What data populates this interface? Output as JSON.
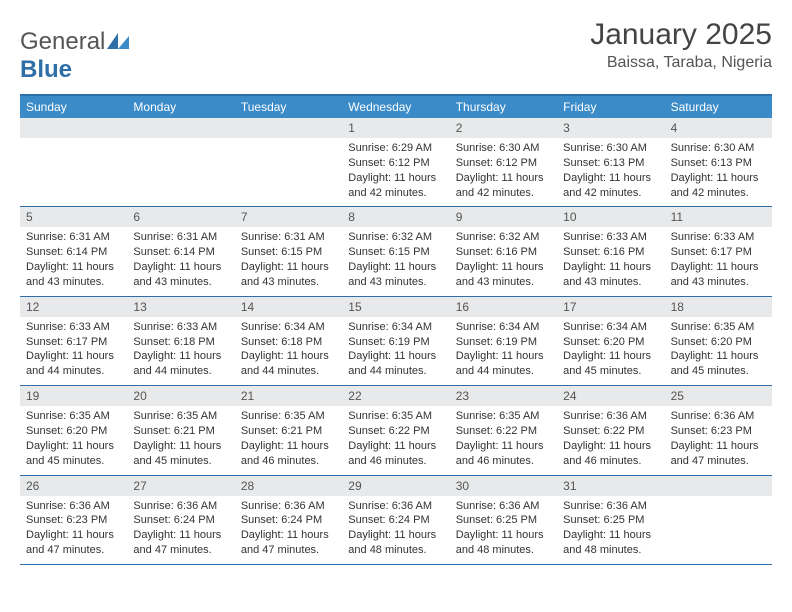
{
  "logo": {
    "general": "General",
    "blue": "Blue"
  },
  "title": "January 2025",
  "location": "Baissa, Taraba, Nigeria",
  "colors": {
    "header_bar": "#3b8bc9",
    "accent_line": "#2f6fa8",
    "day_strip": "#e8e9ea",
    "text": "#333333",
    "background": "#ffffff"
  },
  "weekdays": [
    "Sunday",
    "Monday",
    "Tuesday",
    "Wednesday",
    "Thursday",
    "Friday",
    "Saturday"
  ],
  "weeks": [
    [
      {
        "day": "",
        "sunrise": "",
        "sunset": "",
        "daylight": ""
      },
      {
        "day": "",
        "sunrise": "",
        "sunset": "",
        "daylight": ""
      },
      {
        "day": "",
        "sunrise": "",
        "sunset": "",
        "daylight": ""
      },
      {
        "day": "1",
        "sunrise": "Sunrise: 6:29 AM",
        "sunset": "Sunset: 6:12 PM",
        "daylight": "Daylight: 11 hours and 42 minutes."
      },
      {
        "day": "2",
        "sunrise": "Sunrise: 6:30 AM",
        "sunset": "Sunset: 6:12 PM",
        "daylight": "Daylight: 11 hours and 42 minutes."
      },
      {
        "day": "3",
        "sunrise": "Sunrise: 6:30 AM",
        "sunset": "Sunset: 6:13 PM",
        "daylight": "Daylight: 11 hours and 42 minutes."
      },
      {
        "day": "4",
        "sunrise": "Sunrise: 6:30 AM",
        "sunset": "Sunset: 6:13 PM",
        "daylight": "Daylight: 11 hours and 42 minutes."
      }
    ],
    [
      {
        "day": "5",
        "sunrise": "Sunrise: 6:31 AM",
        "sunset": "Sunset: 6:14 PM",
        "daylight": "Daylight: 11 hours and 43 minutes."
      },
      {
        "day": "6",
        "sunrise": "Sunrise: 6:31 AM",
        "sunset": "Sunset: 6:14 PM",
        "daylight": "Daylight: 11 hours and 43 minutes."
      },
      {
        "day": "7",
        "sunrise": "Sunrise: 6:31 AM",
        "sunset": "Sunset: 6:15 PM",
        "daylight": "Daylight: 11 hours and 43 minutes."
      },
      {
        "day": "8",
        "sunrise": "Sunrise: 6:32 AM",
        "sunset": "Sunset: 6:15 PM",
        "daylight": "Daylight: 11 hours and 43 minutes."
      },
      {
        "day": "9",
        "sunrise": "Sunrise: 6:32 AM",
        "sunset": "Sunset: 6:16 PM",
        "daylight": "Daylight: 11 hours and 43 minutes."
      },
      {
        "day": "10",
        "sunrise": "Sunrise: 6:33 AM",
        "sunset": "Sunset: 6:16 PM",
        "daylight": "Daylight: 11 hours and 43 minutes."
      },
      {
        "day": "11",
        "sunrise": "Sunrise: 6:33 AM",
        "sunset": "Sunset: 6:17 PM",
        "daylight": "Daylight: 11 hours and 43 minutes."
      }
    ],
    [
      {
        "day": "12",
        "sunrise": "Sunrise: 6:33 AM",
        "sunset": "Sunset: 6:17 PM",
        "daylight": "Daylight: 11 hours and 44 minutes."
      },
      {
        "day": "13",
        "sunrise": "Sunrise: 6:33 AM",
        "sunset": "Sunset: 6:18 PM",
        "daylight": "Daylight: 11 hours and 44 minutes."
      },
      {
        "day": "14",
        "sunrise": "Sunrise: 6:34 AM",
        "sunset": "Sunset: 6:18 PM",
        "daylight": "Daylight: 11 hours and 44 minutes."
      },
      {
        "day": "15",
        "sunrise": "Sunrise: 6:34 AM",
        "sunset": "Sunset: 6:19 PM",
        "daylight": "Daylight: 11 hours and 44 minutes."
      },
      {
        "day": "16",
        "sunrise": "Sunrise: 6:34 AM",
        "sunset": "Sunset: 6:19 PM",
        "daylight": "Daylight: 11 hours and 44 minutes."
      },
      {
        "day": "17",
        "sunrise": "Sunrise: 6:34 AM",
        "sunset": "Sunset: 6:20 PM",
        "daylight": "Daylight: 11 hours and 45 minutes."
      },
      {
        "day": "18",
        "sunrise": "Sunrise: 6:35 AM",
        "sunset": "Sunset: 6:20 PM",
        "daylight": "Daylight: 11 hours and 45 minutes."
      }
    ],
    [
      {
        "day": "19",
        "sunrise": "Sunrise: 6:35 AM",
        "sunset": "Sunset: 6:20 PM",
        "daylight": "Daylight: 11 hours and 45 minutes."
      },
      {
        "day": "20",
        "sunrise": "Sunrise: 6:35 AM",
        "sunset": "Sunset: 6:21 PM",
        "daylight": "Daylight: 11 hours and 45 minutes."
      },
      {
        "day": "21",
        "sunrise": "Sunrise: 6:35 AM",
        "sunset": "Sunset: 6:21 PM",
        "daylight": "Daylight: 11 hours and 46 minutes."
      },
      {
        "day": "22",
        "sunrise": "Sunrise: 6:35 AM",
        "sunset": "Sunset: 6:22 PM",
        "daylight": "Daylight: 11 hours and 46 minutes."
      },
      {
        "day": "23",
        "sunrise": "Sunrise: 6:35 AM",
        "sunset": "Sunset: 6:22 PM",
        "daylight": "Daylight: 11 hours and 46 minutes."
      },
      {
        "day": "24",
        "sunrise": "Sunrise: 6:36 AM",
        "sunset": "Sunset: 6:22 PM",
        "daylight": "Daylight: 11 hours and 46 minutes."
      },
      {
        "day": "25",
        "sunrise": "Sunrise: 6:36 AM",
        "sunset": "Sunset: 6:23 PM",
        "daylight": "Daylight: 11 hours and 47 minutes."
      }
    ],
    [
      {
        "day": "26",
        "sunrise": "Sunrise: 6:36 AM",
        "sunset": "Sunset: 6:23 PM",
        "daylight": "Daylight: 11 hours and 47 minutes."
      },
      {
        "day": "27",
        "sunrise": "Sunrise: 6:36 AM",
        "sunset": "Sunset: 6:24 PM",
        "daylight": "Daylight: 11 hours and 47 minutes."
      },
      {
        "day": "28",
        "sunrise": "Sunrise: 6:36 AM",
        "sunset": "Sunset: 6:24 PM",
        "daylight": "Daylight: 11 hours and 47 minutes."
      },
      {
        "day": "29",
        "sunrise": "Sunrise: 6:36 AM",
        "sunset": "Sunset: 6:24 PM",
        "daylight": "Daylight: 11 hours and 48 minutes."
      },
      {
        "day": "30",
        "sunrise": "Sunrise: 6:36 AM",
        "sunset": "Sunset: 6:25 PM",
        "daylight": "Daylight: 11 hours and 48 minutes."
      },
      {
        "day": "31",
        "sunrise": "Sunrise: 6:36 AM",
        "sunset": "Sunset: 6:25 PM",
        "daylight": "Daylight: 11 hours and 48 minutes."
      },
      {
        "day": "",
        "sunrise": "",
        "sunset": "",
        "daylight": ""
      }
    ]
  ]
}
